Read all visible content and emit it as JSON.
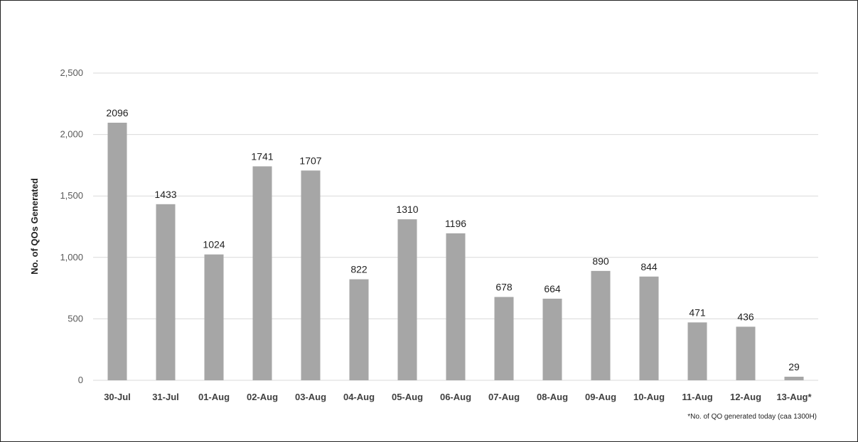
{
  "chart_data": {
    "type": "bar",
    "title": "",
    "xlabel": "",
    "ylabel": "No. of QOs Generated",
    "ylim": [
      0,
      2500
    ],
    "yticks": [
      0,
      500,
      1000,
      1500,
      2000,
      2500
    ],
    "ytick_labels": [
      "0",
      "500",
      "1,000",
      "1,500",
      "2,000",
      "2,500"
    ],
    "grid": true,
    "categories": [
      "30-Jul",
      "31-Jul",
      "01-Aug",
      "02-Aug",
      "03-Aug",
      "04-Aug",
      "05-Aug",
      "06-Aug",
      "07-Aug",
      "08-Aug",
      "09-Aug",
      "10-Aug",
      "11-Aug",
      "12-Aug",
      "13-Aug*"
    ],
    "values": [
      2096,
      1433,
      1024,
      1741,
      1707,
      822,
      1310,
      1196,
      678,
      664,
      890,
      844,
      471,
      436,
      29
    ],
    "bar_color": "#a6a6a6",
    "footnote": "*No. of QO generated today (caa 1300H)"
  }
}
